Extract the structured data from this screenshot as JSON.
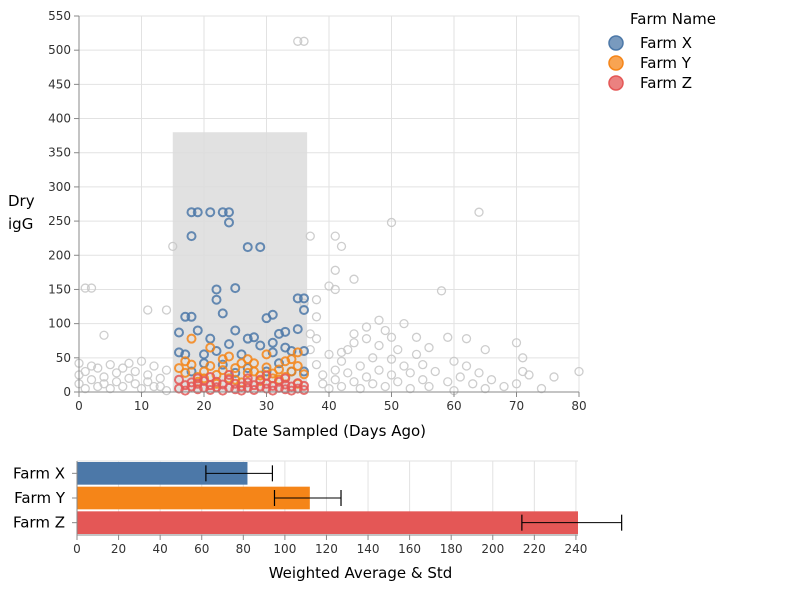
{
  "colors": {
    "farm_x": "#4c78a8",
    "farm_y": "#f58518",
    "farm_z": "#e45756",
    "unselected": "#c8c8c8",
    "brush": "#dcdcdc"
  },
  "chart_data": [
    {
      "type": "scatter",
      "xlabel": "Date Sampled (Days Ago)",
      "ylabel": "Dry igG",
      "xlim": [
        0,
        80
      ],
      "ylim": [
        0,
        550
      ],
      "x_ticks": [
        "0",
        "10",
        "20",
        "30",
        "40",
        "50",
        "60",
        "70",
        "80"
      ],
      "y_ticks": [
        "0",
        "50",
        "100",
        "150",
        "200",
        "250",
        "300",
        "350",
        "400",
        "450",
        "500",
        "550"
      ],
      "grid": true,
      "brush": {
        "x": [
          15,
          36.5
        ],
        "y": [
          0,
          380
        ]
      },
      "legend": {
        "title": "Farm Name",
        "position": "right",
        "entries": [
          {
            "label": "Farm X",
            "color": "#4c78a8"
          },
          {
            "label": "Farm Y",
            "color": "#f58518"
          },
          {
            "label": "Farm Z",
            "color": "#e45756"
          }
        ]
      },
      "series": [
        {
          "name": "Farm X",
          "color": "#4c78a8",
          "points": [
            [
              17,
              110
            ],
            [
              18,
              110
            ],
            [
              18,
              263
            ],
            [
              19,
              263
            ],
            [
              18,
              228
            ],
            [
              21,
              263
            ],
            [
              23,
              263
            ],
            [
              24,
              263
            ],
            [
              24,
              248
            ],
            [
              27,
              212
            ],
            [
              29,
              212
            ],
            [
              22,
              150
            ],
            [
              22,
              135
            ],
            [
              25,
              152
            ],
            [
              30,
              108
            ],
            [
              31,
              113
            ],
            [
              16,
              87
            ],
            [
              19,
              90
            ],
            [
              21,
              78
            ],
            [
              23,
              115
            ],
            [
              25,
              90
            ],
            [
              27,
              78
            ],
            [
              28,
              80
            ],
            [
              32,
              85
            ],
            [
              33,
              88
            ],
            [
              35,
              92
            ],
            [
              36,
              137
            ],
            [
              35,
              137
            ],
            [
              36,
              120
            ],
            [
              16,
              58
            ],
            [
              17,
              55
            ],
            [
              20,
              55
            ],
            [
              22,
              60
            ],
            [
              24,
              70
            ],
            [
              26,
              55
            ],
            [
              29,
              68
            ],
            [
              31,
              72
            ],
            [
              31,
              58
            ],
            [
              33,
              65
            ],
            [
              34,
              60
            ],
            [
              36,
              60
            ],
            [
              23,
              40
            ],
            [
              27,
              35
            ],
            [
              30,
              30
            ],
            [
              32,
              42
            ],
            [
              18,
              30
            ],
            [
              25,
              28
            ],
            [
              34,
              30
            ],
            [
              36,
              30
            ],
            [
              20,
              42
            ]
          ]
        },
        {
          "name": "Farm Y",
          "color": "#f58518",
          "points": [
            [
              16,
              35
            ],
            [
              17,
              28
            ],
            [
              18,
              40
            ],
            [
              19,
              22
            ],
            [
              20,
              30
            ],
            [
              21,
              38
            ],
            [
              22,
              25
            ],
            [
              23,
              32
            ],
            [
              24,
              20
            ],
            [
              25,
              35
            ],
            [
              26,
              42
            ],
            [
              27,
              28
            ],
            [
              28,
              30
            ],
            [
              29,
              24
            ],
            [
              30,
              36
            ],
            [
              31,
              27
            ],
            [
              32,
              33
            ],
            [
              33,
              22
            ],
            [
              34,
              30
            ],
            [
              35,
              38
            ],
            [
              36,
              26
            ],
            [
              18,
              78
            ],
            [
              21,
              65
            ],
            [
              24,
              52
            ],
            [
              27,
              48
            ],
            [
              30,
              55
            ],
            [
              33,
              45
            ],
            [
              35,
              58
            ],
            [
              19,
              15
            ],
            [
              22,
              12
            ],
            [
              26,
              14
            ],
            [
              29,
              16
            ],
            [
              32,
              18
            ],
            [
              35,
              12
            ],
            [
              17,
              45
            ],
            [
              23,
              48
            ],
            [
              28,
              42
            ],
            [
              34,
              48
            ],
            [
              20,
              20
            ],
            [
              25,
              18
            ],
            [
              31,
              20
            ]
          ]
        },
        {
          "name": "Farm Z",
          "color": "#e45756",
          "points": [
            [
              16,
              5
            ],
            [
              17,
              10
            ],
            [
              17,
              2
            ],
            [
              18,
              8
            ],
            [
              18,
              14
            ],
            [
              19,
              4
            ],
            [
              19,
              12
            ],
            [
              20,
              6
            ],
            [
              20,
              16
            ],
            [
              21,
              3
            ],
            [
              21,
              10
            ],
            [
              22,
              7
            ],
            [
              22,
              15
            ],
            [
              23,
              2
            ],
            [
              23,
              11
            ],
            [
              24,
              6
            ],
            [
              24,
              18
            ],
            [
              25,
              4
            ],
            [
              25,
              12
            ],
            [
              26,
              8
            ],
            [
              26,
              2
            ],
            [
              27,
              14
            ],
            [
              27,
              6
            ],
            [
              28,
              3
            ],
            [
              28,
              10
            ],
            [
              29,
              8
            ],
            [
              29,
              18
            ],
            [
              30,
              5
            ],
            [
              30,
              12
            ],
            [
              31,
              2
            ],
            [
              31,
              9
            ],
            [
              32,
              6
            ],
            [
              32,
              15
            ],
            [
              33,
              4
            ],
            [
              33,
              11
            ],
            [
              34,
              8
            ],
            [
              34,
              2
            ],
            [
              35,
              13
            ],
            [
              35,
              5
            ],
            [
              36,
              9
            ],
            [
              36,
              3
            ],
            [
              21,
              22
            ],
            [
              24,
              25
            ],
            [
              27,
              20
            ],
            [
              30,
              24
            ],
            [
              33,
              20
            ],
            [
              16,
              18
            ],
            [
              19,
              20
            ]
          ]
        },
        {
          "name": "",
          "color": "#c8c8c8",
          "points": [
            [
              0,
              42
            ],
            [
              0,
              25
            ],
            [
              0,
              12
            ],
            [
              1,
              5
            ],
            [
              1,
              30
            ],
            [
              2,
              38
            ],
            [
              2,
              18
            ],
            [
              3,
              8
            ],
            [
              3,
              35
            ],
            [
              4,
              22
            ],
            [
              4,
              12
            ],
            [
              5,
              40
            ],
            [
              5,
              5
            ],
            [
              6,
              28
            ],
            [
              6,
              15
            ],
            [
              7,
              35
            ],
            [
              7,
              8
            ],
            [
              8,
              20
            ],
            [
              8,
              42
            ],
            [
              9,
              12
            ],
            [
              9,
              30
            ],
            [
              10,
              5
            ],
            [
              10,
              45
            ],
            [
              11,
              25
            ],
            [
              11,
              15
            ],
            [
              12,
              38
            ],
            [
              12,
              8
            ],
            [
              13,
              20
            ],
            [
              14,
              32
            ],
            [
              14,
              2
            ],
            [
              1,
              152
            ],
            [
              2,
              152
            ],
            [
              4,
              83
            ],
            [
              11,
              120
            ],
            [
              14,
              120
            ],
            [
              15,
              213
            ],
            [
              13,
              8
            ],
            [
              37,
              228
            ],
            [
              41,
              228
            ],
            [
              42,
              213
            ],
            [
              41,
              178
            ],
            [
              40,
              155
            ],
            [
              41,
              150
            ],
            [
              44,
              165
            ],
            [
              38,
              135
            ],
            [
              38,
              110
            ],
            [
              36,
              130
            ],
            [
              37,
              85
            ],
            [
              37,
              62
            ],
            [
              38,
              40
            ],
            [
              39,
              25
            ],
            [
              39,
              12
            ],
            [
              40,
              55
            ],
            [
              40,
              5
            ],
            [
              41,
              32
            ],
            [
              41,
              18
            ],
            [
              42,
              45
            ],
            [
              42,
              8
            ],
            [
              43,
              28
            ],
            [
              43,
              62
            ],
            [
              44,
              15
            ],
            [
              44,
              85
            ],
            [
              45,
              38
            ],
            [
              45,
              5
            ],
            [
              46,
              22
            ],
            [
              46,
              78
            ],
            [
              47,
              50
            ],
            [
              47,
              12
            ],
            [
              48,
              32
            ],
            [
              48,
              68
            ],
            [
              49,
              8
            ],
            [
              49,
              90
            ],
            [
              50,
              25
            ],
            [
              50,
              48
            ],
            [
              50,
              248
            ],
            [
              51,
              15
            ],
            [
              51,
              62
            ],
            [
              52,
              38
            ],
            [
              52,
              100
            ],
            [
              53,
              5
            ],
            [
              53,
              28
            ],
            [
              54,
              55
            ],
            [
              54,
              80
            ],
            [
              55,
              18
            ],
            [
              55,
              40
            ],
            [
              56,
              8
            ],
            [
              56,
              65
            ],
            [
              57,
              30
            ],
            [
              58,
              148
            ],
            [
              59,
              80
            ],
            [
              59,
              15
            ],
            [
              60,
              45
            ],
            [
              60,
              2
            ],
            [
              61,
              22
            ],
            [
              62,
              78
            ],
            [
              62,
              38
            ],
            [
              63,
              12
            ],
            [
              64,
              263
            ],
            [
              64,
              28
            ],
            [
              65,
              62
            ],
            [
              65,
              5
            ],
            [
              66,
              18
            ],
            [
              68,
              8
            ],
            [
              70,
              72
            ],
            [
              70,
              12
            ],
            [
              71,
              50
            ],
            [
              71,
              30
            ],
            [
              72,
              25
            ],
            [
              74,
              5
            ],
            [
              76,
              22
            ],
            [
              80,
              30
            ],
            [
              35,
              513
            ],
            [
              36,
              513
            ],
            [
              38,
              78
            ],
            [
              42,
              58
            ],
            [
              44,
              72
            ],
            [
              46,
              95
            ],
            [
              48,
              105
            ],
            [
              50,
              80
            ]
          ]
        }
      ]
    },
    {
      "type": "bar",
      "orientation": "horizontal",
      "categories": [
        "Farm X",
        "Farm Y",
        "Farm Z"
      ],
      "values": [
        82,
        112,
        241
      ],
      "std_low": [
        62,
        95,
        214
      ],
      "std_high": [
        94,
        127,
        262
      ],
      "colors": [
        "#4c78a8",
        "#f58518",
        "#e45756"
      ],
      "xlabel": "Weighted Average & Std",
      "xlim": [
        0,
        241
      ],
      "x_ticks": [
        "0",
        "20",
        "40",
        "60",
        "80",
        "100",
        "120",
        "140",
        "160",
        "180",
        "200",
        "220",
        "240"
      ],
      "grid": true
    }
  ]
}
